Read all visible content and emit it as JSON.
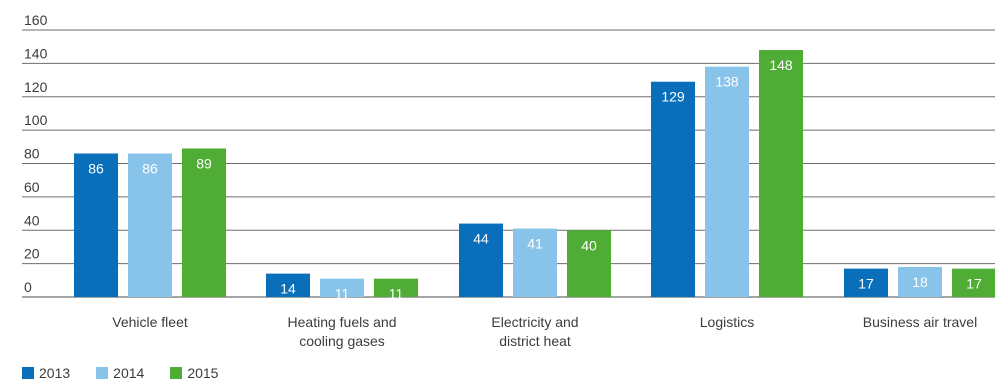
{
  "chart_data": {
    "type": "bar",
    "categories": [
      [
        "Vehicle fleet"
      ],
      [
        "Heating fuels and",
        "cooling gases"
      ],
      [
        "Electricity and",
        "district heat"
      ],
      [
        "Logistics"
      ],
      [
        "Business air travel"
      ]
    ],
    "series": [
      {
        "name": "2013",
        "color": "#0a6fba",
        "values": [
          86,
          14,
          44,
          129,
          17
        ]
      },
      {
        "name": "2014",
        "color": "#88c3ea",
        "values": [
          86,
          11,
          41,
          138,
          18
        ]
      },
      {
        "name": "2015",
        "color": "#4fad35",
        "values": [
          89,
          11,
          40,
          148,
          17
        ]
      }
    ],
    "ylim": [
      0,
      160
    ],
    "yticks": [
      0,
      20,
      40,
      60,
      80,
      100,
      120,
      140,
      160
    ],
    "grid": true,
    "legend_position": "bottom-left",
    "title": "",
    "xlabel": "",
    "ylabel": ""
  }
}
